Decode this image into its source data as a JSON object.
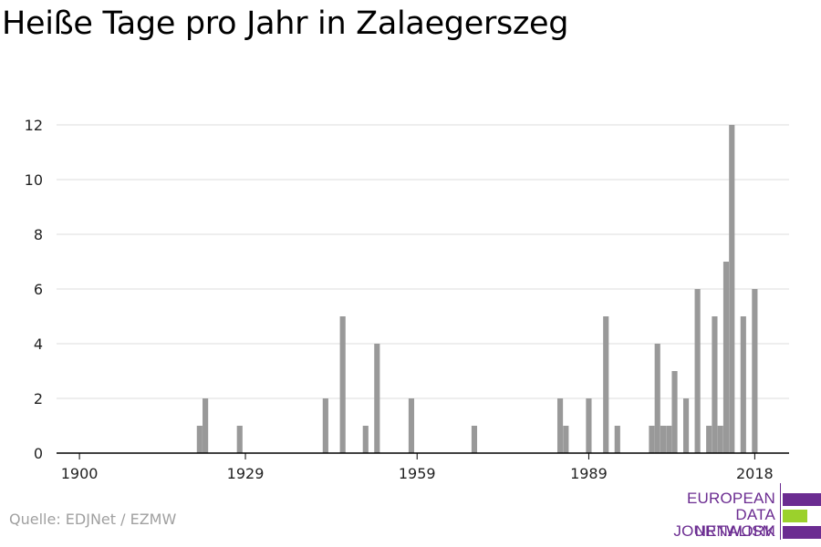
{
  "title": "Heiße Tage pro Jahr in Zalaegerszeg",
  "source": "Quelle: EDJNet / EZMW",
  "logo": {
    "line1": "EUROPEAN",
    "line2": "DATA JOURNALISM",
    "line3": "NETWORK",
    "colors": [
      "#6b2c91",
      "#9bd12c",
      "#6b2c91"
    ]
  },
  "colors": {
    "bar": "#999999",
    "grid": "#dddddd",
    "axis": "#000000",
    "tick_label": "#222222"
  },
  "chart_data": {
    "type": "bar",
    "title": "Heiße Tage pro Jahr in Zalaegerszeg",
    "xlabel": "",
    "ylabel": "",
    "xlim": [
      1896,
      2024
    ],
    "ylim": [
      0,
      12
    ],
    "x_ticks": [
      1900,
      1929,
      1959,
      1989,
      2018
    ],
    "y_ticks": [
      0,
      2,
      4,
      6,
      8,
      10,
      12
    ],
    "grid": true,
    "years": [
      1921,
      1922,
      1928,
      1943,
      1946,
      1950,
      1952,
      1958,
      1969,
      1984,
      1985,
      1989,
      1992,
      1994,
      2000,
      2001,
      2002,
      2003,
      2004,
      2006,
      2008,
      2010,
      2011,
      2012,
      2013,
      2014,
      2016,
      2018
    ],
    "values": [
      1,
      2,
      1,
      2,
      5,
      1,
      4,
      2,
      1,
      2,
      1,
      2,
      5,
      1,
      1,
      4,
      1,
      1,
      3,
      2,
      6,
      1,
      5,
      1,
      7,
      12,
      5,
      6
    ]
  }
}
